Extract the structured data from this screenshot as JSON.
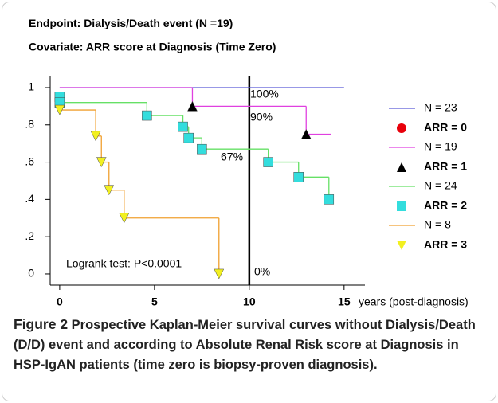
{
  "chart_data": {
    "type": "step",
    "title": "Endpoint: Dialysis/Death  event",
    "title_note": "(N =19)",
    "subtitle": "Covariate: ARR score at Diagnosis (Time Zero)",
    "x_label": "years (post-diagnosis)",
    "xlim": [
      -0.5,
      16.1
    ],
    "xticks": [
      0,
      5,
      10,
      15
    ],
    "ylim": [
      -0.06,
      1.064
    ],
    "yticks": [
      0,
      {
        "value": 0.2,
        "label": ".2"
      },
      {
        "value": 0.4,
        "label": ".4"
      },
      {
        "value": 0.6,
        "label": ".6"
      },
      {
        "value": 0.8,
        "label": ".8"
      },
      1
    ],
    "vline": 10,
    "series": [
      {
        "name": "N = 23",
        "color": "#5a5ad6",
        "marker_label": "ARR = 0",
        "marker": "circle",
        "marker_color": "#e8000b",
        "x": [
          0,
          15
        ],
        "values": [
          1,
          1
        ]
      },
      {
        "name": "N = 19",
        "color": "#e040e0",
        "marker_label": "ARR = 1",
        "marker": "triangle",
        "marker_color": "#000000",
        "x": [
          0,
          7,
          13,
          14.3
        ],
        "values": [
          1,
          0.9,
          0.75,
          0.75
        ],
        "marker_x": [
          7,
          13
        ],
        "marker_values": [
          0.9,
          0.75
        ]
      },
      {
        "name": "N = 24",
        "color": "#66e066",
        "marker_label": "ARR = 2",
        "marker": "square",
        "marker_color": "#33dddd",
        "x": [
          0,
          0.05,
          4.6,
          6.5,
          6.8,
          7.5,
          11,
          12.6,
          14.2
        ],
        "values": [
          0.95,
          0.92,
          0.85,
          0.79,
          0.73,
          0.67,
          0.6,
          0.52,
          0.4
        ],
        "marker_x": [
          0,
          0,
          4.6,
          6.5,
          6.8,
          7.5,
          11,
          12.6,
          14.2
        ],
        "marker_values": [
          0.95,
          0.92,
          0.85,
          0.79,
          0.73,
          0.67,
          0.6,
          0.52,
          0.4
        ]
      },
      {
        "name": "N = 8",
        "color": "#f0a030",
        "marker_label": "ARR = 3",
        "marker": "triangle-down",
        "marker_color": "#f2f020",
        "x": [
          0,
          1.9,
          2.2,
          2.6,
          3.4,
          8.4
        ],
        "values": [
          0.88,
          0.74,
          0.6,
          0.45,
          0.3,
          0
        ],
        "marker_x": [
          0,
          1.9,
          2.2,
          2.6,
          3.4,
          8.4
        ],
        "marker_values": [
          0.88,
          0.74,
          0.6,
          0.45,
          0.3,
          0
        ]
      }
    ],
    "annotations": [
      "100%",
      "90%",
      "67%",
      "0%",
      "Logrank test: P<0.0001"
    ]
  },
  "caption": {
    "label": "Figure 2",
    "text": "Prospective Kaplan-Meier survival curves without Dialysis/Death (D/D) event and according to Absolute Renal Risk score at Diagnosis in HSP-IgAN patients (time zero is biopsy-proven diagnosis)."
  }
}
